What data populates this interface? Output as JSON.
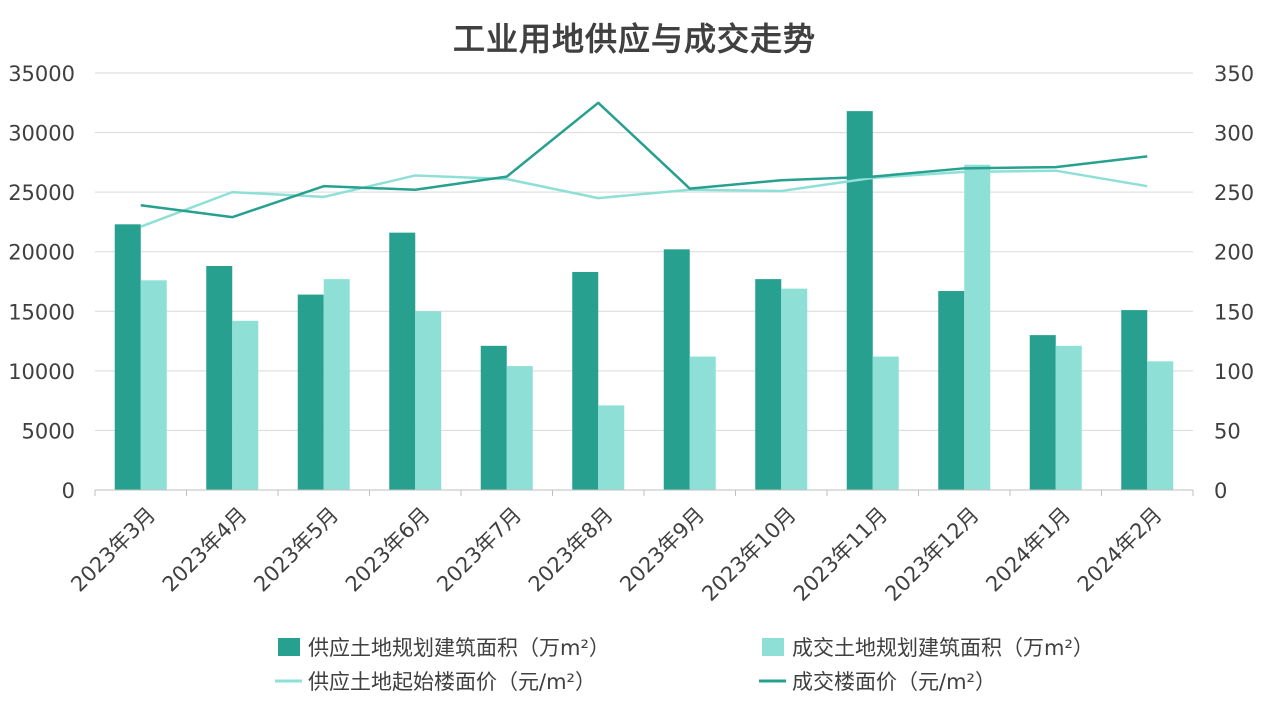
{
  "chart_data": {
    "type": "bar",
    "title": "工业用地供应与成交走势",
    "categories": [
      "2023年3月",
      "2023年4月",
      "2023年5月",
      "2023年6月",
      "2023年7月",
      "2023年8月",
      "2023年9月",
      "2023年10月",
      "2023年11月",
      "2023年12月",
      "2024年1月",
      "2024年2月"
    ],
    "y_left": {
      "ylim": [
        0,
        35000
      ],
      "ticks": [
        "0",
        "5000",
        "10000",
        "15000",
        "20000",
        "25000",
        "30000",
        "35000"
      ]
    },
    "y_right": {
      "ylim": [
        0,
        350
      ],
      "ticks": [
        "0",
        "50",
        "100",
        "150",
        "200",
        "250",
        "300",
        "350"
      ]
    },
    "grid": true,
    "legend_placement": "bottom",
    "series": [
      {
        "name": "供应土地规划建筑面积（万m²）",
        "kind": "bar",
        "axis": "left",
        "color": "#27A090",
        "values": [
          22300,
          18800,
          16400,
          21600,
          12100,
          18300,
          20200,
          17700,
          31800,
          16700,
          13000,
          15100
        ]
      },
      {
        "name": "成交土地规划建筑面积（万m²）",
        "kind": "bar",
        "axis": "left",
        "color": "#8EE0D6",
        "values": [
          17600,
          14200,
          17700,
          15000,
          10400,
          7100,
          11200,
          16900,
          11200,
          27300,
          12100,
          10800
        ]
      },
      {
        "name": "供应土地起始楼面价（元/m²）",
        "kind": "line",
        "axis": "right",
        "color": "#8EE0D6",
        "values": [
          221,
          250,
          246,
          264,
          261,
          245,
          252,
          251,
          262,
          267,
          268,
          255
        ]
      },
      {
        "name": "成交楼面价（元/m²）",
        "kind": "line",
        "axis": "right",
        "color": "#27A090",
        "values": [
          239,
          229,
          255,
          252,
          263,
          325,
          253,
          260,
          263,
          270,
          271,
          280
        ]
      }
    ]
  }
}
